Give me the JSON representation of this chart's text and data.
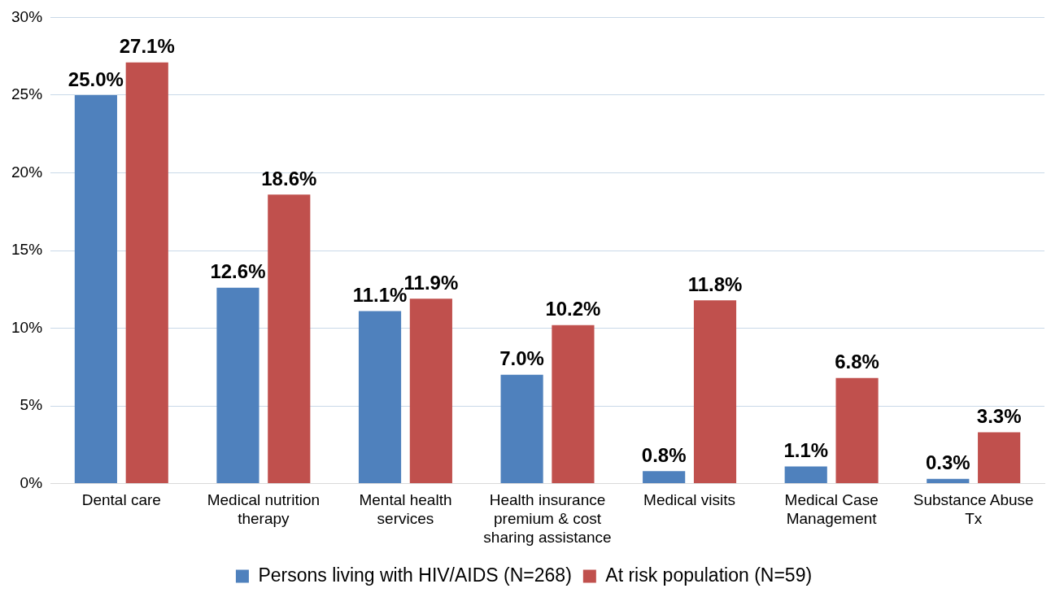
{
  "chart_data": {
    "type": "bar",
    "categories": [
      "Dental care",
      "Medical nutrition therapy",
      "Mental health services",
      "Health insurance premium & cost sharing assistance",
      "Medical visits",
      "Medical Case Management",
      "Substance Abuse Tx"
    ],
    "series": [
      {
        "name": "Persons living with HIV/AIDS (N=268)",
        "color": "#4f81bd",
        "values": [
          25.0,
          12.6,
          11.1,
          7.0,
          0.8,
          1.1,
          0.3
        ],
        "value_labels": [
          "25.0%",
          "12.6%",
          "11.1%",
          "7.0%",
          "0.8%",
          "1.1%",
          "0.3%"
        ]
      },
      {
        "name": "At risk population (N=59)",
        "color": "#c0504d",
        "values": [
          27.1,
          18.6,
          11.9,
          10.2,
          11.8,
          6.8,
          3.3
        ],
        "value_labels": [
          "27.1%",
          "18.6%",
          "11.9%",
          "10.2%",
          "11.8%",
          "6.8%",
          "3.3%"
        ]
      }
    ],
    "ylim": [
      0,
      30
    ],
    "yticks": [
      {
        "value": 0,
        "label": "0%"
      },
      {
        "value": 5,
        "label": "5%"
      },
      {
        "value": 10,
        "label": "10%"
      },
      {
        "value": 15,
        "label": "15%"
      },
      {
        "value": 20,
        "label": "20%"
      },
      {
        "value": 25,
        "label": "25%"
      },
      {
        "value": 30,
        "label": "30%"
      }
    ],
    "grid": "y",
    "legend": "bottom"
  }
}
